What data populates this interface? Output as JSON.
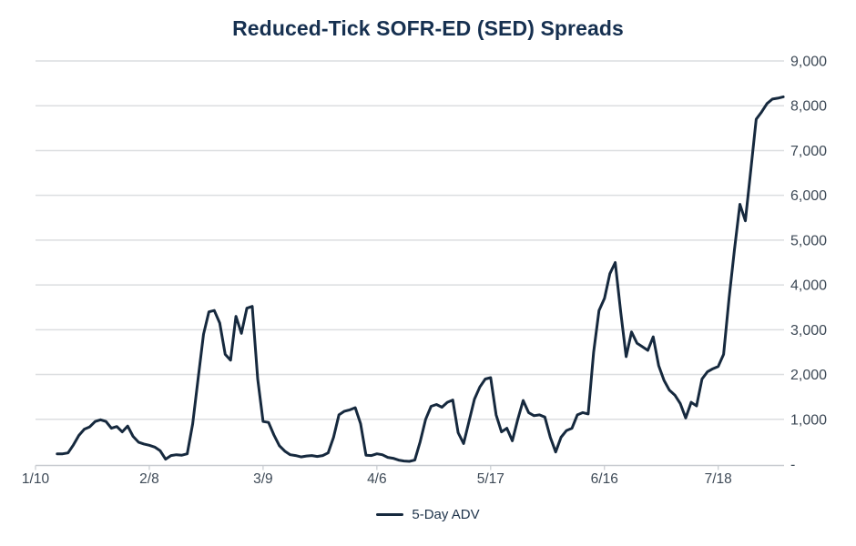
{
  "title": "Reduced-Tick SOFR-ED (SED) Spreads",
  "legend": {
    "label": "5-Day ADV"
  },
  "colors": {
    "line": "#16293E",
    "title": "#163050",
    "axis_text": "#3D4956",
    "grid": "#DCDEE0",
    "axis_line": "#C7CBD0",
    "legend_text": "#1D3249"
  },
  "chart_data": {
    "type": "line",
    "title": "Reduced-Tick SOFR-ED (SED) Spreads",
    "xlabel": "",
    "ylabel": "",
    "ylim": [
      0,
      9000
    ],
    "grid": "horizontal",
    "legend_position": "bottom-center",
    "y_axis": {
      "side": "right",
      "min": 0,
      "max": 9000,
      "step": 1000,
      "tick_labels": [
        "-",
        "1,000",
        "2,000",
        "3,000",
        "4,000",
        "5,000",
        "6,000",
        "7,000",
        "8,000",
        "9,000"
      ]
    },
    "x_axis": {
      "tick_labels": [
        "1/10",
        "2/8",
        "3/9",
        "4/6",
        "5/17",
        "6/16",
        "7/18"
      ],
      "tick_indices": [
        0,
        21,
        42,
        63,
        84,
        105,
        126
      ]
    },
    "series": [
      {
        "name": "5-Day ADV",
        "start_index": 4,
        "values": [
          230,
          230,
          250,
          430,
          640,
          780,
          830,
          950,
          990,
          950,
          800,
          840,
          720,
          850,
          620,
          490,
          450,
          420,
          380,
          300,
          110,
          190,
          210,
          200,
          230,
          900,
          1900,
          2900,
          3400,
          3430,
          3150,
          2450,
          2320,
          3300,
          2920,
          3480,
          3520,
          1900,
          950,
          930,
          650,
          410,
          290,
          210,
          190,
          160,
          180,
          190,
          170,
          190,
          250,
          600,
          1100,
          1180,
          1210,
          1260,
          900,
          200,
          190,
          230,
          210,
          150,
          130,
          90,
          70,
          60,
          90,
          500,
          1000,
          1290,
          1330,
          1270,
          1380,
          1430,
          700,
          460,
          950,
          1450,
          1720,
          1900,
          1930,
          1100,
          720,
          800,
          520,
          1000,
          1420,
          1150,
          1080,
          1100,
          1050,
          600,
          270,
          600,
          750,
          800,
          1100,
          1150,
          1120,
          2500,
          3430,
          3700,
          4250,
          4500,
          3400,
          2400,
          2950,
          2700,
          2620,
          2540,
          2840,
          2200,
          1870,
          1650,
          1540,
          1350,
          1030,
          1380,
          1300,
          1900,
          2060,
          2130,
          2180,
          2450,
          3700,
          4800,
          5800,
          5430,
          6550,
          7700,
          7860,
          8050,
          8150,
          8170,
          8200
        ]
      }
    ]
  }
}
